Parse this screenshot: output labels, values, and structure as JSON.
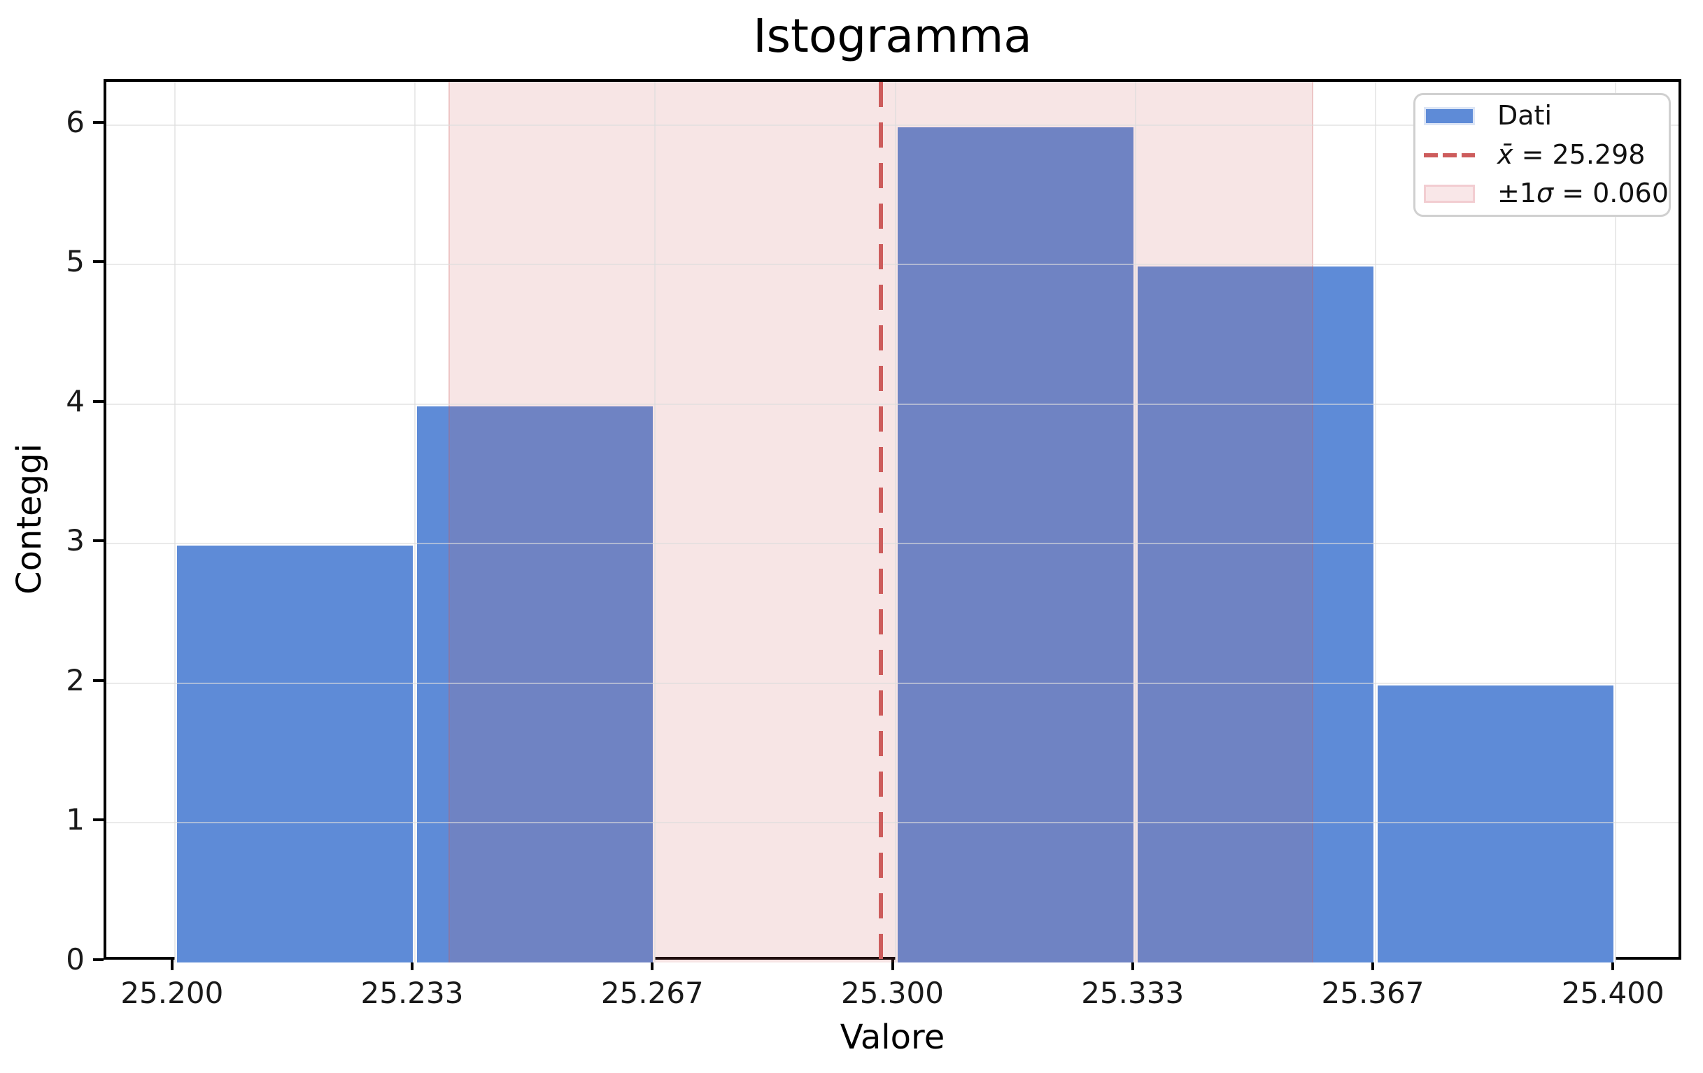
{
  "chart_data": {
    "type": "histogram",
    "title": "Istogramma",
    "xlabel": "Valore",
    "ylabel": "Conteggi",
    "bin_edges": [
      25.2,
      25.23333,
      25.26667,
      25.3,
      25.33333,
      25.36667,
      25.4
    ],
    "counts": [
      3,
      4,
      0,
      6,
      5,
      2
    ],
    "mean": 25.298,
    "sigma": 0.06,
    "sigma_band": [
      25.238,
      25.358
    ],
    "xlim": [
      25.1905,
      25.4095
    ],
    "ylim": [
      0,
      6.31
    ],
    "x_ticks": [
      {
        "value": 25.2,
        "label": "25.200"
      },
      {
        "value": 25.23333,
        "label": "25.233"
      },
      {
        "value": 25.26667,
        "label": "25.267"
      },
      {
        "value": 25.3,
        "label": "25.300"
      },
      {
        "value": 25.33333,
        "label": "25.333"
      },
      {
        "value": 25.36667,
        "label": "25.367"
      },
      {
        "value": 25.4,
        "label": "25.400"
      }
    ],
    "y_ticks": [
      0,
      1,
      2,
      3,
      4,
      5,
      6
    ],
    "grid": true,
    "legend_position": "upper right"
  },
  "legend": {
    "items": [
      {
        "label": "Dati"
      },
      {
        "math": "x̄",
        "rest": " = 25.298"
      },
      {
        "prefix": "±1",
        "math": "σ",
        "rest": " = 0.060"
      }
    ]
  },
  "colors": {
    "bar": "#5E8BD7",
    "bar_edge": "#FFFFFF",
    "mean_line": "#CD5C5C",
    "band_fill": "rgba(205,92,92,0.16)",
    "band_edge": "rgba(205,92,92,0.22)",
    "grid": "rgba(220,220,220,0.6)",
    "axis": "#000000",
    "text": "#1A1A1A",
    "legend_border": "#D0D0D0",
    "legend_dati_swatch_border": "#DDE6F6",
    "legend_sigma_swatch_fill": "#F9E7E8",
    "legend_sigma_swatch_border": "#F2CDD1"
  }
}
